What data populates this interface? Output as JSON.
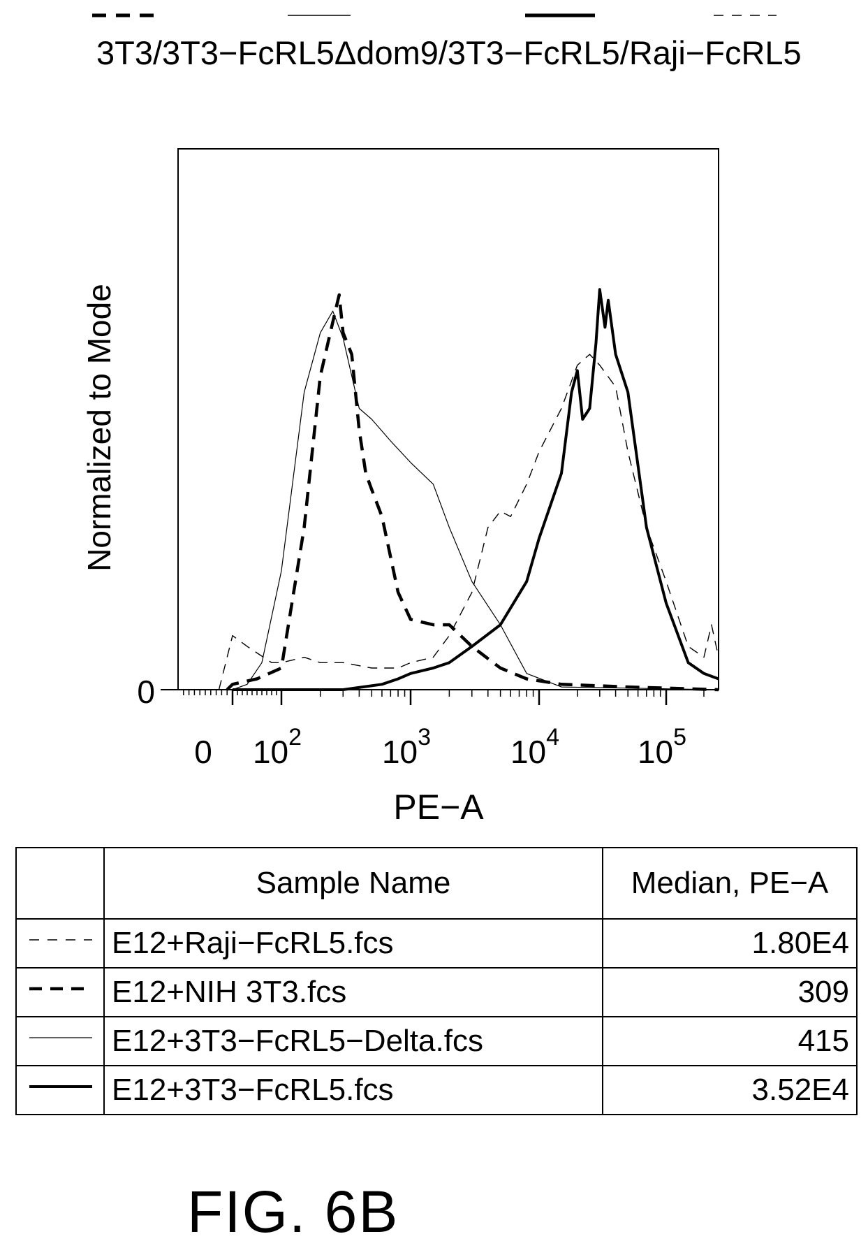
{
  "header": {
    "title": "3T3/3T3−FcRL5Δdom9/3T3−FcRL5/Raji−FcRL5"
  },
  "chart_data": {
    "type": "line",
    "title": "",
    "xlabel": "PE−A",
    "ylabel": "Normalized to Mode",
    "x_scale": "logicle",
    "x_ticks": [
      "0",
      "10^2",
      "10^3",
      "10^4",
      "10^5"
    ],
    "x_tick_labels": [
      {
        "base": "0",
        "exp": ""
      },
      {
        "base": "10",
        "exp": "2"
      },
      {
        "base": "10",
        "exp": "3"
      },
      {
        "base": "10",
        "exp": "4"
      },
      {
        "base": "10",
        "exp": "5"
      }
    ],
    "y_ticks": [
      "0"
    ],
    "ylim": [
      0,
      100
    ],
    "grid": false,
    "series": [
      {
        "name": "E12+Raji−FcRL5.fcs",
        "style": "thin-dashed",
        "median": "1.80E4",
        "points": [
          [
            -50,
            0
          ],
          [
            -25,
            5
          ],
          [
            0,
            10
          ],
          [
            30,
            8
          ],
          [
            80,
            5
          ],
          [
            100,
            5
          ],
          [
            150,
            6
          ],
          [
            200,
            5
          ],
          [
            300,
            5
          ],
          [
            500,
            4
          ],
          [
            800,
            4
          ],
          [
            1000,
            5
          ],
          [
            1500,
            6
          ],
          [
            2000,
            10
          ],
          [
            3000,
            18
          ],
          [
            4000,
            30
          ],
          [
            5000,
            33
          ],
          [
            6000,
            32
          ],
          [
            8000,
            38
          ],
          [
            10000,
            44
          ],
          [
            15000,
            52
          ],
          [
            20000,
            60
          ],
          [
            25000,
            62
          ],
          [
            30000,
            60
          ],
          [
            40000,
            56
          ],
          [
            50000,
            44
          ],
          [
            70000,
            30
          ],
          [
            100000,
            20
          ],
          [
            150000,
            8
          ],
          [
            200000,
            6
          ],
          [
            230000,
            12
          ],
          [
            262000,
            6
          ]
        ]
      },
      {
        "name": "E12+NIH 3T3.fcs",
        "style": "thick-dashed",
        "median": "309",
        "points": [
          [
            -20,
            0
          ],
          [
            0,
            1
          ],
          [
            50,
            2
          ],
          [
            100,
            4
          ],
          [
            150,
            30
          ],
          [
            200,
            58
          ],
          [
            250,
            68
          ],
          [
            280,
            73
          ],
          [
            300,
            66
          ],
          [
            350,
            62
          ],
          [
            400,
            48
          ],
          [
            450,
            40
          ],
          [
            500,
            37
          ],
          [
            600,
            32
          ],
          [
            800,
            18
          ],
          [
            1000,
            13
          ],
          [
            1500,
            12
          ],
          [
            2000,
            12
          ],
          [
            3000,
            8
          ],
          [
            5000,
            4
          ],
          [
            8000,
            2
          ],
          [
            15000,
            1
          ],
          [
            50000,
            0.5
          ],
          [
            262000,
            0
          ]
        ]
      },
      {
        "name": "E12+3T3−FcRL5−Delta.fcs",
        "style": "thin-solid",
        "median": "415",
        "points": [
          [
            0,
            0
          ],
          [
            30,
            1
          ],
          [
            60,
            5
          ],
          [
            100,
            22
          ],
          [
            150,
            55
          ],
          [
            200,
            66
          ],
          [
            250,
            70
          ],
          [
            300,
            65
          ],
          [
            400,
            52
          ],
          [
            500,
            50
          ],
          [
            700,
            46
          ],
          [
            1000,
            42
          ],
          [
            1500,
            38
          ],
          [
            2000,
            30
          ],
          [
            3000,
            20
          ],
          [
            5000,
            12
          ],
          [
            8000,
            3
          ],
          [
            15000,
            0.5
          ],
          [
            262000,
            0
          ]
        ]
      },
      {
        "name": "E12+3T3−FcRL5.fcs",
        "style": "thick-solid",
        "median": "3.52E4",
        "points": [
          [
            0,
            0
          ],
          [
            300,
            0
          ],
          [
            600,
            1
          ],
          [
            800,
            2
          ],
          [
            1000,
            3
          ],
          [
            1500,
            4
          ],
          [
            2000,
            5
          ],
          [
            3000,
            8
          ],
          [
            5000,
            12
          ],
          [
            8000,
            20
          ],
          [
            10000,
            28
          ],
          [
            15000,
            40
          ],
          [
            18000,
            55
          ],
          [
            20000,
            59
          ],
          [
            22000,
            50
          ],
          [
            25000,
            52
          ],
          [
            28000,
            64
          ],
          [
            30000,
            74
          ],
          [
            33000,
            67
          ],
          [
            35000,
            72
          ],
          [
            40000,
            62
          ],
          [
            50000,
            55
          ],
          [
            70000,
            30
          ],
          [
            100000,
            16
          ],
          [
            150000,
            5
          ],
          [
            200000,
            3
          ],
          [
            262000,
            2
          ]
        ]
      }
    ]
  },
  "table": {
    "headers": [
      "",
      "Sample Name",
      "Median, PE−A"
    ],
    "rows": [
      {
        "style": "thin-dashed",
        "name": "E12+Raji−FcRL5.fcs",
        "median": "1.80E4"
      },
      {
        "style": "thick-dashed",
        "name": "E12+NIH 3T3.fcs",
        "median": "309"
      },
      {
        "style": "thin-solid",
        "name": "E12+3T3−FcRL5−Delta.fcs",
        "median": "415"
      },
      {
        "style": "thick-solid",
        "name": "E12+3T3−FcRL5.fcs",
        "median": "3.52E4"
      }
    ]
  },
  "figure_label": "FIG. 6B"
}
